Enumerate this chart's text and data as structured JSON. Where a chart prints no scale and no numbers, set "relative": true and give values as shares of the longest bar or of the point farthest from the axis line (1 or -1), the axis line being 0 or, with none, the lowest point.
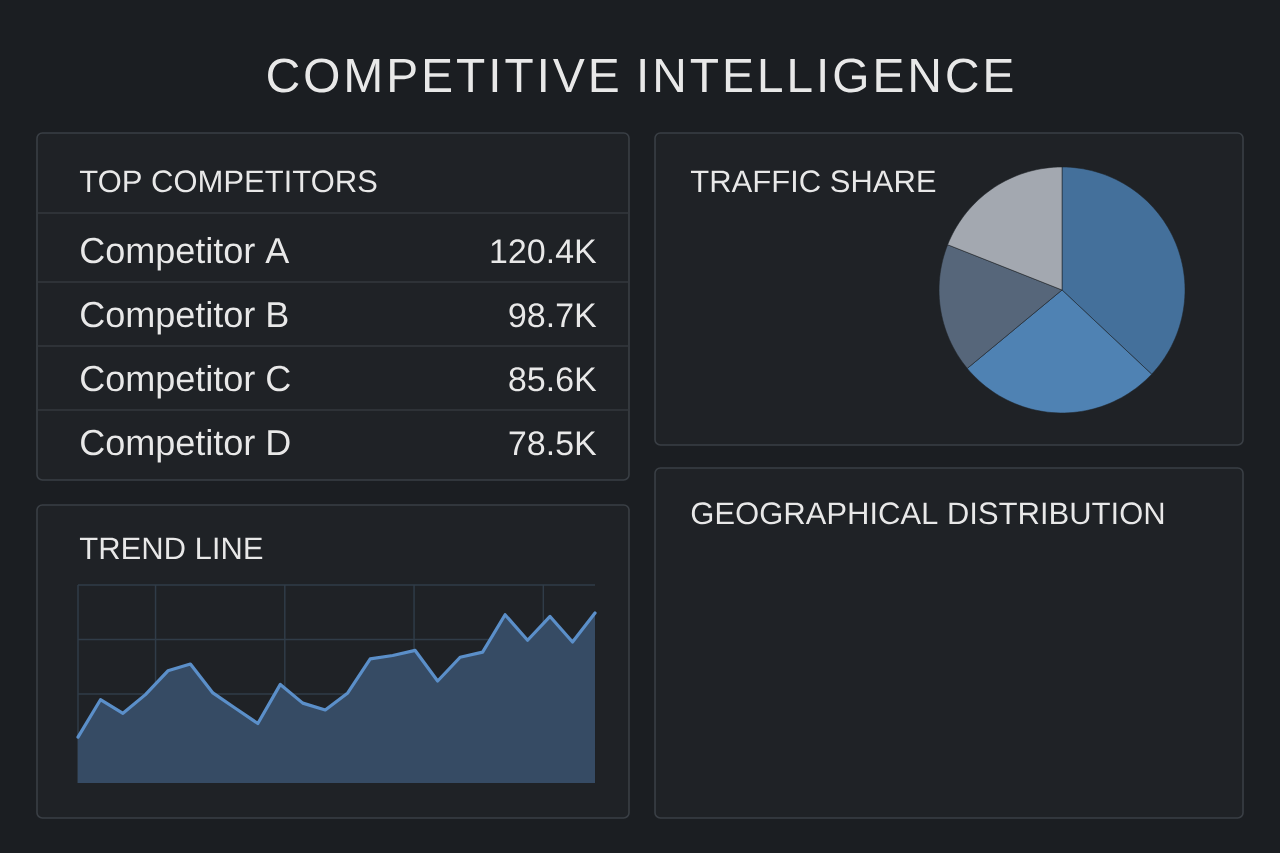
{
  "chart_data": [
    {
      "type": "other",
      "title": "COMPETITIVE INTELLIGENCE"
    },
    {
      "type": "other",
      "title": "TOP COMPETITORS",
      "categories": [
        "Competitor A",
        "Competitor B",
        "Competitor C",
        "Competitor D"
      ],
      "value_labels": [
        "120.4K",
        "98.7K",
        "85.6K",
        "78.5K"
      ]
    },
    {
      "type": "pie",
      "title": "TRAFFIC SHARE",
      "categories": [
        null,
        null,
        null,
        null
      ],
      "values": [
        37,
        27,
        17,
        19
      ],
      "colors": [
        "#44709B",
        "#4F82B3",
        "#56667A",
        "#A3A8B0"
      ]
    },
    {
      "type": "area",
      "title": "TREND LINE",
      "relative": true,
      "grid": true,
      "categories": [
        null,
        null,
        null,
        null,
        null,
        null,
        null,
        null,
        null,
        null,
        null,
        null,
        null,
        null,
        null,
        null,
        null,
        null,
        null,
        null,
        null,
        null,
        null,
        null
      ],
      "series": [
        {
          "color": "#5B8FC9",
          "values": [
            0.27,
            0.49,
            0.41,
            0.52,
            0.66,
            0.7,
            0.53,
            0.44,
            0.35,
            0.58,
            0.47,
            0.43,
            0.53,
            0.73,
            0.75,
            0.78,
            0.6,
            0.74,
            0.77,
            0.99,
            0.84,
            0.98,
            0.83,
            1.0
          ]
        }
      ]
    },
    {
      "type": "other",
      "title": "GEOGRAPHICAL DISTRIBUTION"
    }
  ]
}
